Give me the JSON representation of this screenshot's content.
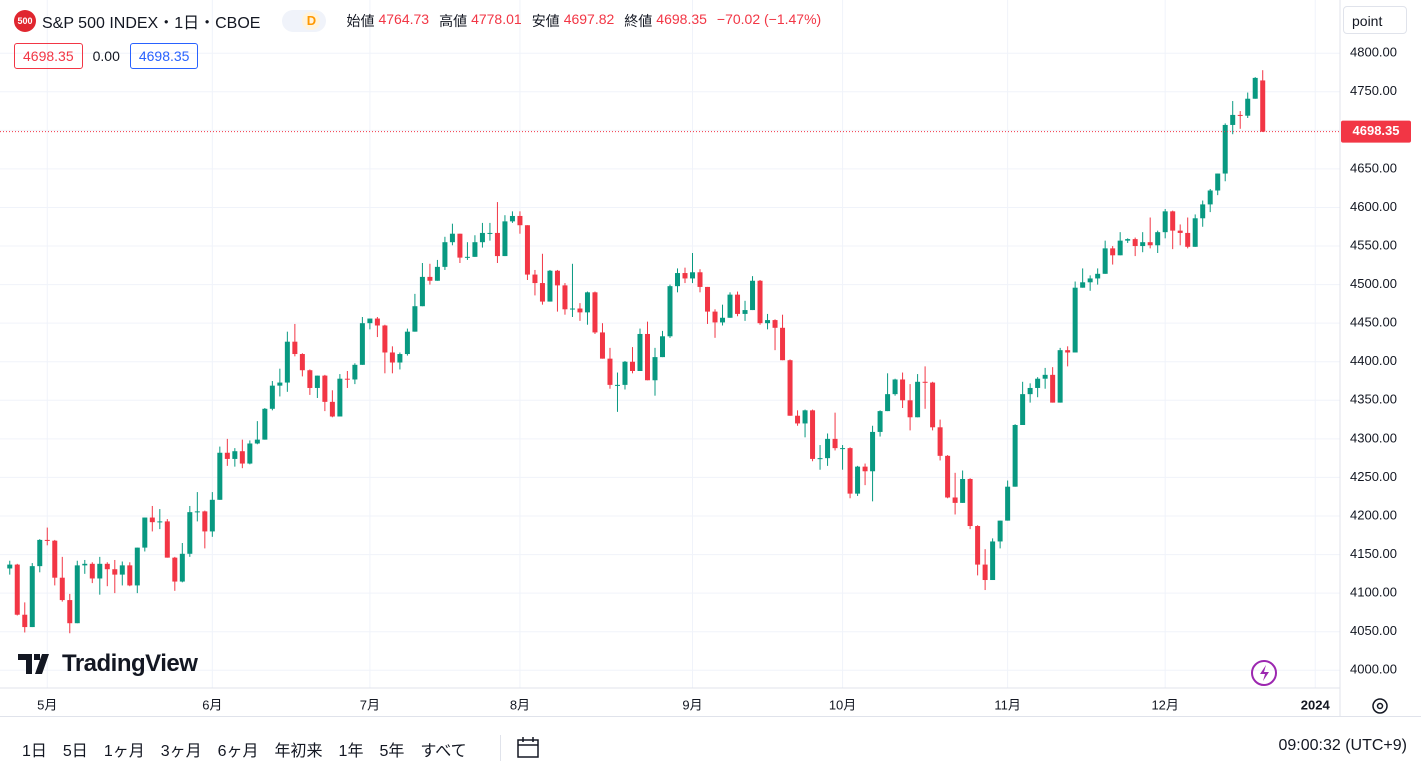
{
  "header": {
    "badge": "500",
    "symbol": "S&P 500 INDEX・1日・CBOE",
    "interval_badge": "D",
    "open_label": "始値",
    "high_label": "高値",
    "low_label": "安値",
    "close_label": "終値",
    "change": "−70.02 (−1.47%)",
    "spread": "0.00",
    "unit": "point"
  },
  "logo": "TradingView",
  "toolbar": {
    "ranges": [
      "1日",
      "5日",
      "1ヶ月",
      "3ヶ月",
      "6ヶ月",
      "年初来",
      "1年",
      "5年",
      "すべて"
    ],
    "clock": "09:00:32 (UTC+9)"
  },
  "chart_data": {
    "type": "candlestick",
    "up_color": "#089981",
    "down_color": "#f23645",
    "grid": true,
    "ylim": [
      3977,
      4869
    ],
    "xlim": [
      -1.3,
      177.3
    ],
    "yticks": [
      {
        "value": 4000,
        "label": "4000.00"
      },
      {
        "value": 4050,
        "label": "4050.00"
      },
      {
        "value": 4100,
        "label": "4100.00"
      },
      {
        "value": 4150,
        "label": "4150.00"
      },
      {
        "value": 4200,
        "label": "4200.00"
      },
      {
        "value": 4250,
        "label": "4250.00"
      },
      {
        "value": 4300,
        "label": "4300.00"
      },
      {
        "value": 4350,
        "label": "4350.00"
      },
      {
        "value": 4400,
        "label": "4400.00"
      },
      {
        "value": 4450,
        "label": "4450.00"
      },
      {
        "value": 4500,
        "label": "4500.00"
      },
      {
        "value": 4550,
        "label": "4550.00"
      },
      {
        "value": 4600,
        "label": "4600.00"
      },
      {
        "value": 4650,
        "label": "4650.00"
      },
      {
        "value": 4700,
        "label": "4700.00"
      },
      {
        "value": 4750,
        "label": "4750.00"
      },
      {
        "value": 4800,
        "label": "4800.00"
      }
    ],
    "xticks": [
      {
        "value": 5,
        "label": "5月"
      },
      {
        "value": 27,
        "label": "6月"
      },
      {
        "value": 48,
        "label": "7月"
      },
      {
        "value": 68,
        "label": "8月"
      },
      {
        "value": 91,
        "label": "9月"
      },
      {
        "value": 111,
        "label": "10月"
      },
      {
        "value": 133,
        "label": "11月"
      },
      {
        "value": 154,
        "label": "12月"
      },
      {
        "value": 174,
        "label": "2024"
      }
    ],
    "open": [
      4132,
      4137,
      4072,
      4056,
      4135,
      4169,
      4168,
      4120,
      4091,
      4061,
      4136,
      4138,
      4119,
      4138,
      4131,
      4124,
      4136,
      4110,
      4159,
      4198,
      4192,
      4193,
      4146,
      4115,
      4151,
      4205,
      4206,
      4180,
      4221,
      4282,
      4274,
      4284,
      4268,
      4294,
      4299,
      4339,
      4369,
      4373,
      4426,
      4410,
      4389,
      4366,
      4382,
      4348,
      4329,
      4378,
      4377,
      4396,
      4450,
      4456,
      4447,
      4412,
      4399,
      4410,
      4439,
      4472,
      4510,
      4505,
      4523,
      4555,
      4566,
      4535,
      4536,
      4555,
      4567,
      4567,
      4537,
      4582,
      4589,
      4577,
      4513,
      4502,
      4478,
      4518,
      4499,
      4468,
      4469,
      4464,
      4490,
      4438,
      4404,
      4370,
      4370,
      4400,
      4388,
      4436,
      4376,
      4406,
      4433,
      4498,
      4515,
      4508,
      4516,
      4497,
      4465,
      4451,
      4457,
      4487,
      4462,
      4467,
      4505,
      4450,
      4454,
      4444,
      4402,
      4330,
      4320,
      4337,
      4274,
      4275,
      4300,
      4288,
      4288,
      4229,
      4264,
      4258,
      4309,
      4336,
      4358,
      4377,
      4350,
      4328,
      4374,
      4373,
      4315,
      4278,
      4224,
      4217,
      4248,
      4187,
      4137,
      4117,
      4167,
      4194,
      4238,
      4318,
      4358,
      4366,
      4378,
      4383,
      4347,
      4415,
      4412,
      4496,
      4503,
      4508,
      4514,
      4547,
      4538,
      4557,
      4559,
      4550,
      4555,
      4551,
      4568,
      4595,
      4570,
      4567,
      4549,
      4586,
      4604,
      4622,
      4644,
      4707,
      4720,
      4719,
      4741,
      4764.73
    ],
    "high": [
      4142,
      4138,
      4088,
      4139,
      4170,
      4185,
      4169,
      4147,
      4099,
      4142,
      4143,
      4140,
      4147,
      4140,
      4143,
      4141,
      4140,
      4159,
      4198,
      4213,
      4209,
      4196,
      4147,
      4165,
      4213,
      4231,
      4207,
      4231,
      4290,
      4300,
      4288,
      4299,
      4298,
      4323,
      4340,
      4375,
      4391,
      4439,
      4449,
      4411,
      4390,
      4382,
      4383,
      4363,
      4384,
      4388,
      4398,
      4458,
      4456,
      4458,
      4448,
      4420,
      4412,
      4443,
      4488,
      4528,
      4527,
      4532,
      4562,
      4579,
      4566,
      4555,
      4564,
      4580,
      4580,
      4607,
      4590,
      4595,
      4595,
      4577,
      4519,
      4540,
      4519,
      4519,
      4502,
      4527,
      4476,
      4491,
      4491,
      4450,
      4418,
      4386,
      4401,
      4419,
      4443,
      4452,
      4418,
      4440,
      4500,
      4521,
      4522,
      4541,
      4520,
      4497,
      4468,
      4474,
      4490,
      4491,
      4479,
      4511,
      4506,
      4462,
      4455,
      4461,
      4403,
      4337,
      4338,
      4338,
      4292,
      4307,
      4334,
      4292,
      4289,
      4265,
      4268,
      4317,
      4337,
      4385,
      4378,
      4386,
      4371,
      4384,
      4394,
      4374,
      4325,
      4279,
      4256,
      4259,
      4249,
      4188,
      4157,
      4171,
      4194,
      4246,
      4319,
      4374,
      4372,
      4380,
      4392,
      4393,
      4418,
      4420,
      4504,
      4521,
      4512,
      4521,
      4557,
      4550,
      4568,
      4560,
      4561,
      4568,
      4587,
      4570,
      4598,
      4596,
      4578,
      4587,
      4591,
      4609,
      4624,
      4644,
      4709,
      4738,
      4725,
      4749,
      4769,
      4778.01
    ],
    "low": [
      4124,
      4071,
      4049,
      4056,
      4127,
      4162,
      4110,
      4089,
      4048,
      4061,
      4125,
      4113,
      4098,
      4109,
      4100,
      4110,
      4109,
      4100,
      4154,
      4180,
      4183,
      4146,
      4103,
      4114,
      4147,
      4193,
      4158,
      4173,
      4221,
      4265,
      4264,
      4262,
      4267,
      4293,
      4299,
      4337,
      4355,
      4361,
      4407,
      4381,
      4357,
      4353,
      4336,
      4328,
      4329,
      4366,
      4371,
      4396,
      4442,
      4432,
      4385,
      4385,
      4390,
      4408,
      4439,
      4472,
      4500,
      4505,
      4519,
      4551,
      4528,
      4532,
      4536,
      4548,
      4557,
      4528,
      4537,
      4580,
      4566,
      4506,
      4486,
      4474,
      4478,
      4465,
      4461,
      4458,
      4453,
      4448,
      4436,
      4404,
      4365,
      4335,
      4364,
      4385,
      4388,
      4376,
      4356,
      4406,
      4431,
      4490,
      4502,
      4502,
      4490,
      4449,
      4431,
      4447,
      4457,
      4459,
      4453,
      4467,
      4448,
      4442,
      4415,
      4402,
      4330,
      4317,
      4302,
      4271,
      4260,
      4265,
      4285,
      4260,
      4223,
      4226,
      4240,
      4219,
      4303,
      4336,
      4356,
      4340,
      4311,
      4328,
      4339,
      4311,
      4272,
      4223,
      4202,
      4217,
      4183,
      4123,
      4104,
      4117,
      4158,
      4194,
      4238,
      4318,
      4347,
      4354,
      4365,
      4347,
      4347,
      4394,
      4412,
      4496,
      4492,
      4500,
      4514,
      4526,
      4538,
      4554,
      4537,
      4542,
      4547,
      4541,
      4560,
      4546,
      4551,
      4547,
      4549,
      4575,
      4594,
      4616,
      4634,
      4695,
      4702,
      4716,
      4741,
      4697.82
    ],
    "close": [
      4137,
      4072,
      4056,
      4135,
      4169,
      4168,
      4120,
      4091,
      4061,
      4136,
      4138,
      4119,
      4138,
      4131,
      4124,
      4136,
      4110,
      4159,
      4198,
      4192,
      4193,
      4146,
      4115,
      4151,
      4205,
      4206,
      4180,
      4221,
      4282,
      4274,
      4284,
      4268,
      4294,
      4299,
      4339,
      4369,
      4373,
      4426,
      4410,
      4389,
      4366,
      4382,
      4348,
      4329,
      4378,
      4377,
      4396,
      4450,
      4456,
      4447,
      4412,
      4399,
      4410,
      4439,
      4472,
      4510,
      4505,
      4523,
      4555,
      4566,
      4535,
      4536,
      4555,
      4567,
      4567,
      4537,
      4582,
      4589,
      4577,
      4513,
      4502,
      4478,
      4518,
      4499,
      4468,
      4469,
      4464,
      4490,
      4438,
      4404,
      4370,
      4370,
      4400,
      4388,
      4436,
      4376,
      4406,
      4433,
      4498,
      4515,
      4508,
      4516,
      4497,
      4465,
      4451,
      4457,
      4487,
      4462,
      4467,
      4505,
      4450,
      4454,
      4444,
      4402,
      4330,
      4320,
      4337,
      4274,
      4275,
      4300,
      4288,
      4288,
      4229,
      4264,
      4258,
      4309,
      4336,
      4358,
      4377,
      4350,
      4328,
      4374,
      4373,
      4315,
      4278,
      4224,
      4217,
      4248,
      4187,
      4137,
      4117,
      4167,
      4194,
      4238,
      4318,
      4358,
      4366,
      4378,
      4383,
      4347,
      4415,
      4412,
      4496,
      4503,
      4508,
      4514,
      4547,
      4538,
      4557,
      4559,
      4550,
      4555,
      4551,
      4568,
      4595,
      4570,
      4567,
      4549,
      4586,
      4604,
      4622,
      4644,
      4707,
      4720,
      4719,
      4741,
      4768,
      4698.35
    ]
  }
}
